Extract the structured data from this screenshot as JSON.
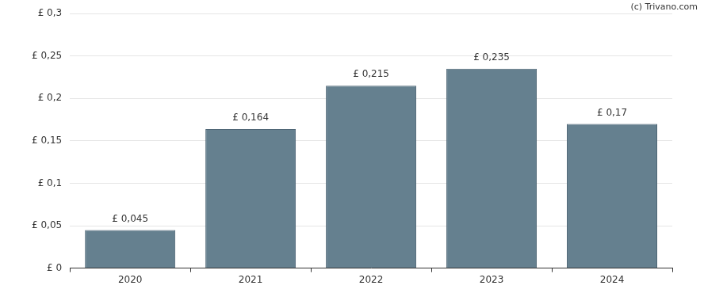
{
  "chart_data": {
    "type": "bar",
    "annotations": [
      "(c) Trivano.com"
    ],
    "categories": [
      "2020",
      "2021",
      "2022",
      "2023",
      "2024"
    ],
    "values": [
      0.045,
      0.164,
      0.215,
      0.235,
      0.17
    ],
    "value_labels": [
      "£ 0,045",
      "£ 0,164",
      "£ 0,215",
      "£ 0,235",
      "£ 0,17"
    ],
    "data_labels": true,
    "color": "#65808f",
    "ylim": [
      0,
      0.3
    ],
    "yticks": [
      {
        "value": 0,
        "label": "£ 0"
      },
      {
        "value": 0.05,
        "label": "£ 0,05"
      },
      {
        "value": 0.1,
        "label": "£ 0,1"
      },
      {
        "value": 0.15,
        "label": "£ 0,15"
      },
      {
        "value": 0.2,
        "label": "£ 0,2"
      },
      {
        "value": 0.25,
        "label": "£ 0,25"
      },
      {
        "value": 0.3,
        "label": "£ 0,3"
      }
    ],
    "grid": true
  }
}
